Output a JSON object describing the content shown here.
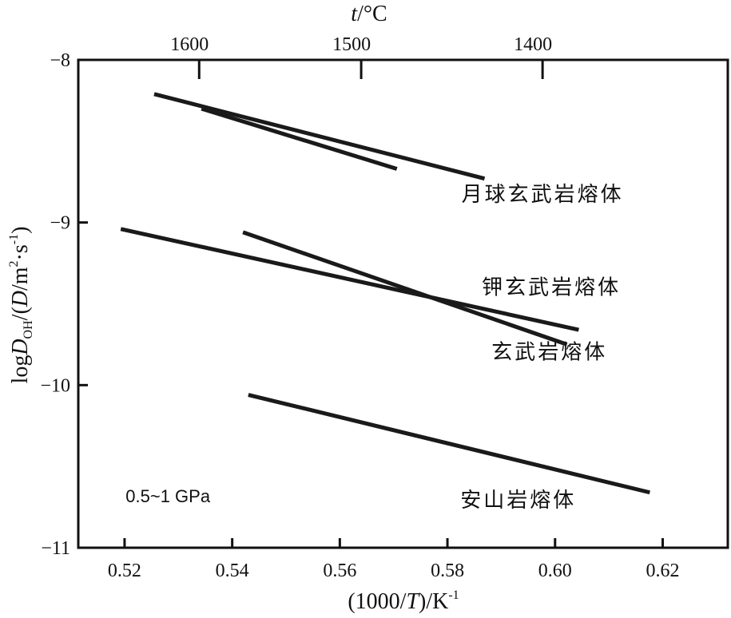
{
  "chart_data": {
    "type": "line",
    "x_axis": {
      "label_parts": [
        "(1000/",
        "T",
        ")/K",
        "-1"
      ],
      "range": [
        0.5114,
        0.6321
      ],
      "ticks": [
        0.52,
        0.54,
        0.56,
        0.58,
        0.6,
        0.62
      ],
      "tick_labels": [
        "0.52",
        "0.54",
        "0.56",
        "0.58",
        "0.60",
        "0.62"
      ]
    },
    "y_axis": {
      "label_parts": [
        "log",
        "D",
        "OH",
        "/(",
        "D",
        "/m",
        "2",
        "·s",
        "-1",
        ")"
      ],
      "range": [
        -11,
        -8
      ],
      "ticks": [
        -8,
        -9,
        -10,
        -11
      ],
      "tick_labels": [
        "−8",
        "−9",
        "−10",
        "−11"
      ]
    },
    "top_axis": {
      "label_parts": [
        "t",
        "/°C"
      ],
      "ticks_celsius": [
        1600,
        1500,
        1400
      ],
      "tick_labels": [
        "1600",
        "1500",
        "1400"
      ]
    },
    "series": [
      {
        "name": "月球玄武岩熔体",
        "x": [
          0.5255,
          0.5869
        ],
        "y": [
          -8.21,
          -8.73
        ]
      },
      {
        "name": "月球玄武岩熔体",
        "x": [
          0.5343,
          0.5706
        ],
        "y": [
          -8.3,
          -8.67
        ]
      },
      {
        "name": "钾玄武岩熔体",
        "x": [
          0.5193,
          0.6044
        ],
        "y": [
          -9.04,
          -9.66
        ]
      },
      {
        "name": "玄武岩熔体",
        "x": [
          0.542,
          0.6022
        ],
        "y": [
          -9.06,
          -9.75
        ]
      },
      {
        "name": "安山岩熔体",
        "x": [
          0.543,
          0.6176
        ],
        "y": [
          -10.06,
          -10.66
        ]
      }
    ],
    "series_labels": [
      {
        "text": "月球玄武岩熔体",
        "x": 0.5826,
        "y": -8.87
      },
      {
        "text": "钾玄武岩熔体",
        "x": 0.5864,
        "y": -9.44
      },
      {
        "text": "玄武岩熔体",
        "x": 0.5882,
        "y": -9.84
      },
      {
        "text": "安山岩熔体",
        "x": 0.5824,
        "y": -10.75
      }
    ],
    "annotation": {
      "text": "0.5~1 GPa",
      "x": 0.5202,
      "y": -10.72
    },
    "grid": false,
    "legend": "none"
  }
}
